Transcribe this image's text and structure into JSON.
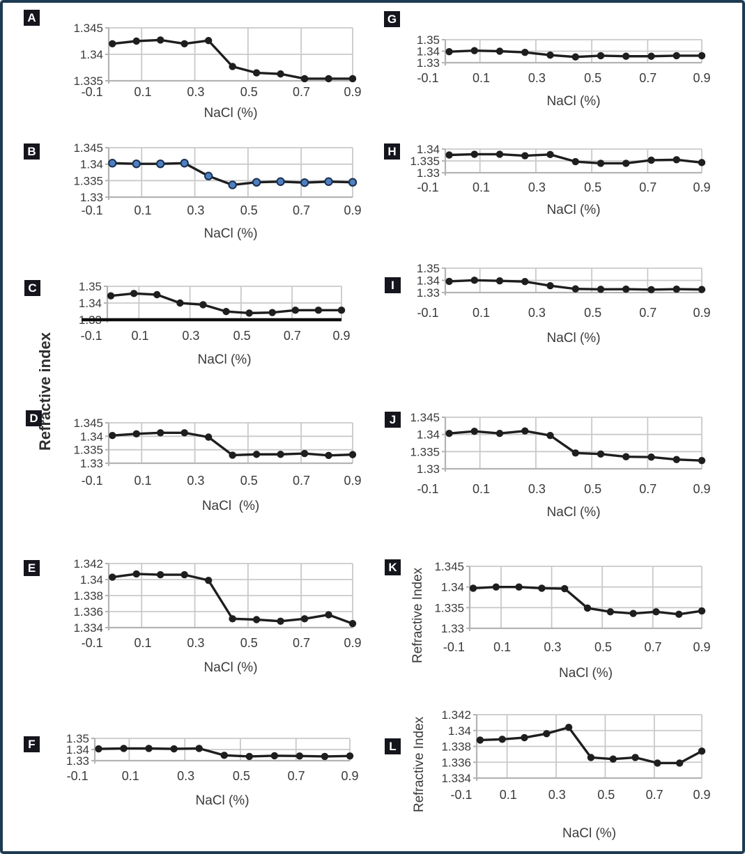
{
  "figure": {
    "shared_ylabel": "Refractive index",
    "border_color": "#1d3b52",
    "background": "#ffffff",
    "line_color": "#1e1e1e",
    "grid_color": "#c9c9c9",
    "axis_color": "#b3b3b3",
    "marker_color": "#1e1e1e",
    "blue_marker_fill": "#4e80bf",
    "blue_marker_stroke": "#1b2f52",
    "thick_baseline_color": "#0d0d0d",
    "panel_label_bg": "#15151d",
    "panel_label_fg": "#ffffff"
  },
  "chart_data": [
    {
      "panel": "A",
      "type": "line",
      "xlabel": "NaCl (%)",
      "ylabel": null,
      "xlim": [
        -0.1,
        0.9
      ],
      "xticks": [
        -0.1,
        0.1,
        0.3,
        0.5,
        0.7,
        0.9
      ],
      "yticks": [
        1.345,
        1.34,
        1.335
      ],
      "ylim": [
        1.335,
        1.345
      ],
      "grid": true,
      "marker": "black",
      "x": [
        0,
        0.09,
        0.18,
        0.27,
        0.36,
        0.45,
        0.54,
        0.63,
        0.72,
        0.81,
        0.9
      ],
      "y": [
        1.342,
        1.3425,
        1.3427,
        1.342,
        1.3426,
        1.3377,
        1.3365,
        1.3363,
        1.3354,
        1.3354,
        1.3354
      ]
    },
    {
      "panel": "B",
      "type": "line",
      "xlabel": "NaCl (%)",
      "ylabel": null,
      "xlim": [
        -0.1,
        0.9
      ],
      "xticks": [
        -0.1,
        0.1,
        0.3,
        0.5,
        0.7,
        0.9
      ],
      "yticks": [
        1.345,
        1.34,
        1.335,
        1.33
      ],
      "ylim": [
        1.33,
        1.345
      ],
      "grid": true,
      "marker": "blue",
      "x": [
        0,
        0.09,
        0.18,
        0.27,
        0.36,
        0.45,
        0.54,
        0.63,
        0.72,
        0.81,
        0.9
      ],
      "y": [
        1.3403,
        1.3401,
        1.3401,
        1.3403,
        1.3364,
        1.3337,
        1.3345,
        1.3347,
        1.3344,
        1.3347,
        1.3345
      ]
    },
    {
      "panel": "C",
      "type": "line",
      "xlabel": "NaCl (%)",
      "ylabel": null,
      "xlim": [
        -0.1,
        0.9
      ],
      "xticks": [
        -0.1,
        0.1,
        0.3,
        0.5,
        0.7,
        0.9
      ],
      "yticks": [
        1.35,
        1.34,
        1.33
      ],
      "ylim": [
        1.33,
        1.35
      ],
      "grid": true,
      "marker": "black",
      "thick_baseline": true,
      "x": [
        0,
        0.09,
        0.18,
        0.27,
        0.36,
        0.45,
        0.54,
        0.63,
        0.72,
        0.81,
        0.9
      ],
      "y": [
        1.3443,
        1.3457,
        1.345,
        1.34,
        1.339,
        1.3349,
        1.334,
        1.3343,
        1.3357,
        1.3357,
        1.3357
      ]
    },
    {
      "panel": "D",
      "type": "line",
      "xlabel": "NaCl  (%)",
      "ylabel": null,
      "xlim": [
        -0.1,
        0.9
      ],
      "xticks": [
        -0.1,
        0.1,
        0.3,
        0.5,
        0.7,
        0.9
      ],
      "yticks": [
        1.345,
        1.34,
        1.335,
        1.33
      ],
      "ylim": [
        1.33,
        1.345
      ],
      "grid": true,
      "marker": "black",
      "x": [
        0,
        0.09,
        0.18,
        0.27,
        0.36,
        0.45,
        0.54,
        0.63,
        0.72,
        0.81,
        0.9
      ],
      "y": [
        1.3403,
        1.3409,
        1.3413,
        1.3413,
        1.3397,
        1.333,
        1.3333,
        1.3333,
        1.3336,
        1.3329,
        1.3332
      ]
    },
    {
      "panel": "E",
      "type": "line",
      "xlabel": "NaCl (%)",
      "ylabel": null,
      "xlim": [
        -0.1,
        0.9
      ],
      "xticks": [
        -0.1,
        0.1,
        0.3,
        0.5,
        0.7,
        0.9
      ],
      "yticks": [
        1.342,
        1.34,
        1.338,
        1.336,
        1.334
      ],
      "ylim": [
        1.334,
        1.342
      ],
      "grid": true,
      "marker": "black",
      "x": [
        0,
        0.09,
        0.18,
        0.27,
        0.36,
        0.45,
        0.54,
        0.63,
        0.72,
        0.81,
        0.9
      ],
      "y": [
        1.3403,
        1.3407,
        1.3406,
        1.3406,
        1.3399,
        1.3351,
        1.335,
        1.3348,
        1.3351,
        1.3356,
        1.3345
      ]
    },
    {
      "panel": "F",
      "type": "line",
      "xlabel": "NaCl (%)",
      "ylabel": null,
      "xlim": [
        -0.1,
        0.9
      ],
      "xticks": [
        -0.1,
        0.1,
        0.3,
        0.5,
        0.7,
        0.9
      ],
      "yticks": [
        1.35,
        1.34,
        1.33
      ],
      "ylim": [
        1.33,
        1.35
      ],
      "grid": true,
      "marker": "black",
      "x": [
        0,
        0.09,
        0.18,
        0.27,
        0.36,
        0.45,
        0.54,
        0.63,
        0.72,
        0.81,
        0.9
      ],
      "y": [
        1.3406,
        1.341,
        1.341,
        1.3406,
        1.341,
        1.3348,
        1.3338,
        1.3344,
        1.3342,
        1.3338,
        1.3342
      ]
    },
    {
      "panel": "G",
      "type": "line",
      "xlabel": "NaCl (%)",
      "ylabel": null,
      "xlim": [
        -0.1,
        0.9
      ],
      "xticks": [
        -0.1,
        0.1,
        0.3,
        0.5,
        0.7,
        0.9
      ],
      "yticks": [
        1.35,
        1.34,
        1.33
      ],
      "ylim": [
        1.33,
        1.35
      ],
      "grid": true,
      "marker": "black",
      "x": [
        0,
        0.09,
        0.18,
        0.27,
        0.36,
        0.45,
        0.54,
        0.63,
        0.72,
        0.81,
        0.9
      ],
      "y": [
        1.3396,
        1.3405,
        1.34,
        1.339,
        1.3366,
        1.335,
        1.3361,
        1.3356,
        1.3356,
        1.3361,
        1.3361
      ]
    },
    {
      "panel": "H",
      "type": "line",
      "xlabel": "NaCl (%)",
      "ylabel": null,
      "xlim": [
        -0.1,
        0.9
      ],
      "xticks": [
        -0.1,
        0.1,
        0.3,
        0.5,
        0.7,
        0.9
      ],
      "yticks": [
        1.34,
        1.335,
        1.33
      ],
      "ylim": [
        1.33,
        1.34
      ],
      "grid": true,
      "marker": "black",
      "x": [
        0,
        0.09,
        0.18,
        0.27,
        0.36,
        0.45,
        0.54,
        0.63,
        0.72,
        0.81,
        0.9
      ],
      "y": [
        1.3375,
        1.3378,
        1.3378,
        1.3372,
        1.3377,
        1.3347,
        1.334,
        1.334,
        1.3353,
        1.3355,
        1.3343
      ]
    },
    {
      "panel": "I",
      "type": "line",
      "xlabel": "NaCl (%)",
      "ylabel": null,
      "xlim": [
        -0.1,
        0.9
      ],
      "xticks": [
        -0.1,
        0.1,
        0.3,
        0.5,
        0.7,
        0.9
      ],
      "yticks": [
        1.35,
        1.34,
        1.33
      ],
      "ylim": [
        1.33,
        1.35
      ],
      "grid": true,
      "marker": "black",
      "x": [
        0,
        0.09,
        0.18,
        0.27,
        0.36,
        0.45,
        0.54,
        0.63,
        0.72,
        0.81,
        0.9
      ],
      "y": [
        1.3392,
        1.3401,
        1.3396,
        1.339,
        1.3356,
        1.333,
        1.3327,
        1.3328,
        1.3324,
        1.3328,
        1.3325
      ]
    },
    {
      "panel": "J",
      "type": "line",
      "xlabel": "NaCl (%)",
      "ylabel": null,
      "xlim": [
        -0.1,
        0.9
      ],
      "xticks": [
        -0.1,
        0.1,
        0.3,
        0.5,
        0.7,
        0.9
      ],
      "yticks": [
        1.345,
        1.34,
        1.335,
        1.33
      ],
      "ylim": [
        1.33,
        1.345
      ],
      "grid": true,
      "marker": "black",
      "x": [
        0,
        0.09,
        0.18,
        0.27,
        0.36,
        0.45,
        0.54,
        0.63,
        0.72,
        0.81,
        0.9
      ],
      "y": [
        1.3403,
        1.3409,
        1.3403,
        1.341,
        1.3397,
        1.3346,
        1.3343,
        1.3335,
        1.3334,
        1.3327,
        1.3324
      ]
    },
    {
      "panel": "K",
      "type": "line",
      "xlabel": "NaCl (%)",
      "ylabel": "Refractive Index",
      "xlim": [
        -0.1,
        0.9
      ],
      "xticks": [
        -0.1,
        0.1,
        0.3,
        0.5,
        0.7,
        0.9
      ],
      "yticks": [
        1.345,
        1.34,
        1.335,
        1.33
      ],
      "ylim": [
        1.33,
        1.345
      ],
      "grid": true,
      "marker": "black",
      "x": [
        0,
        0.09,
        0.18,
        0.27,
        0.36,
        0.45,
        0.54,
        0.63,
        0.72,
        0.81,
        0.9
      ],
      "y": [
        1.3397,
        1.34,
        1.34,
        1.3397,
        1.3396,
        1.3349,
        1.334,
        1.3336,
        1.334,
        1.3334,
        1.3342
      ]
    },
    {
      "panel": "L",
      "type": "line",
      "xlabel": "NaCl (%)",
      "ylabel": "Refractive Index",
      "xlim": [
        -0.1,
        0.9
      ],
      "xticks": [
        -0.1,
        0.1,
        0.3,
        0.5,
        0.7,
        0.9
      ],
      "yticks": [
        1.342,
        1.34,
        1.338,
        1.336,
        1.334
      ],
      "ylim": [
        1.334,
        1.342
      ],
      "grid": true,
      "marker": "black",
      "x": [
        0,
        0.09,
        0.18,
        0.27,
        0.36,
        0.45,
        0.54,
        0.63,
        0.72,
        0.81,
        0.9
      ],
      "y": [
        1.3388,
        1.3389,
        1.3391,
        1.3396,
        1.3404,
        1.3366,
        1.3364,
        1.3366,
        1.3359,
        1.3359,
        1.3374
      ]
    }
  ]
}
